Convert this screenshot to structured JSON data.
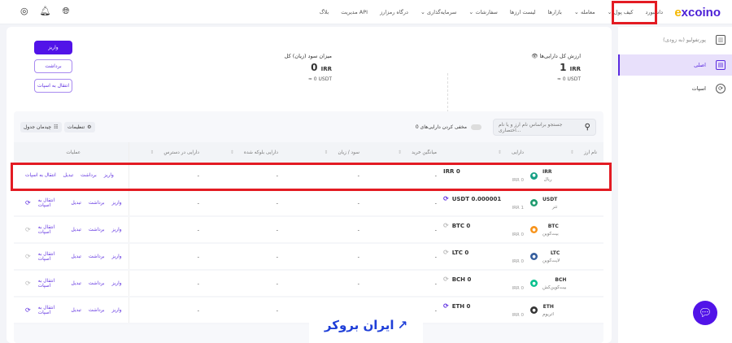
{
  "header": {
    "logo": "excoino",
    "nav": [
      {
        "label": "داشبورد",
        "dd": false
      },
      {
        "label": "کیف پول",
        "dd": true
      },
      {
        "label": "معامله",
        "dd": true
      },
      {
        "label": "بازارها",
        "dd": false
      },
      {
        "label": "لیست ارزها",
        "dd": false
      },
      {
        "label": "سفارشات",
        "dd": true
      },
      {
        "label": "سرمایه‌گذاری",
        "dd": true
      },
      {
        "label": "درگاه رمزارز",
        "dd": false
      },
      {
        "label": "مدیریت API",
        "dd": false
      },
      {
        "label": "بلاگ",
        "dd": false
      }
    ]
  },
  "sidebar": {
    "items": [
      {
        "label": "پورتفولیو (به زودی)",
        "icon": "chart-icon"
      },
      {
        "label": "اصلی",
        "icon": "wallet-icon",
        "active": true
      },
      {
        "label": "اسپات",
        "icon": "spot-icon"
      }
    ]
  },
  "summary": {
    "total_label": "ارزش کل دارایی‌ها",
    "total_value": "1",
    "total_unit": "IRR",
    "total_usdt": "≈ 0 USDT",
    "pnl_label": "میزان سود (زیان) کل",
    "pnl_value": "0",
    "pnl_unit": "IRR",
    "pnl_usdt": "≈ 0 USDT"
  },
  "buttons": {
    "deposit": "واریز",
    "withdraw": "برداشت",
    "transfer": "انتقال به اسپات"
  },
  "toolbar": {
    "search_placeholder": "جستجو براساس نام ارز و یا نام اختصاری...",
    "hide_zero": "مخفی کردن دارایی‌های 0",
    "settings": "تنظیمات",
    "layout": "چیدمان جدول"
  },
  "table": {
    "headers": [
      "نام ارز",
      "دارایی",
      "میانگین خرید",
      "سود / زیان",
      "دارایی بلوکه شده",
      "دارایی در دسترس",
      "عملیات"
    ],
    "actions": [
      "واریز",
      "برداشت",
      "تبدیل",
      "انتقال به اسپات"
    ],
    "rows": [
      {
        "symbol": "IRR",
        "name": "ریال",
        "amount": "IRR 0",
        "irr": "IRR 0",
        "avg": "-",
        "pnl": "-",
        "blocked": "-",
        "available": "-",
        "color": "#16a085",
        "sync": "none"
      },
      {
        "symbol": "USDT",
        "name": "تتر",
        "amount": "USDT 0.000001",
        "irr": "IRR 1",
        "avg": "-",
        "pnl": "-",
        "blocked": "-",
        "available": "-",
        "color": "#1e9a6e",
        "sync": "on"
      },
      {
        "symbol": "BTC",
        "name": "بیت‌کوین",
        "amount": "BTC 0",
        "irr": "IRR 0",
        "avg": "-",
        "pnl": "-",
        "blocked": "-",
        "available": "-",
        "color": "#f7931a",
        "sync": "off"
      },
      {
        "symbol": "LTC",
        "name": "لایت‌کوین",
        "amount": "LTC 0",
        "irr": "IRR 0",
        "avg": "-",
        "pnl": "-",
        "blocked": "-",
        "available": "-",
        "color": "#345d9d",
        "sync": "off"
      },
      {
        "symbol": "BCH",
        "name": "بیت‌کوین‌کش",
        "amount": "BCH 0",
        "irr": "IRR 0",
        "avg": "-",
        "pnl": "-",
        "blocked": "-",
        "available": "-",
        "color": "#0ac18e",
        "sync": "off"
      },
      {
        "symbol": "ETH",
        "name": "اتریوم",
        "amount": "ETH 0",
        "irr": "IRR 0",
        "avg": "-",
        "pnl": "-",
        "blocked": "-",
        "available": "-",
        "color": "#333333",
        "sync": "on"
      }
    ]
  },
  "watermark": "ایران بروکر"
}
